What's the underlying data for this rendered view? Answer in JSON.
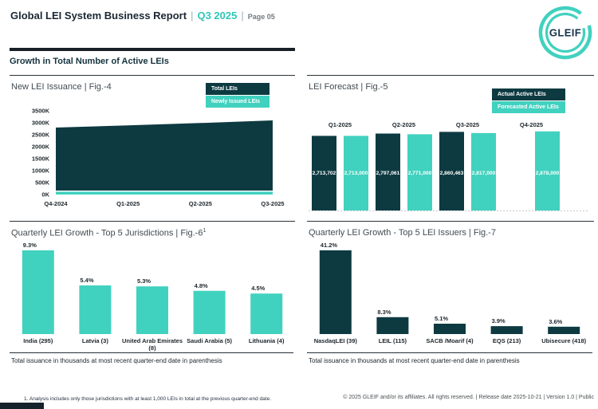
{
  "colors": {
    "teal": "#41d1bf",
    "dark": "#0d3a41",
    "heading": "#14333e",
    "title_gray": "#414b52"
  },
  "header": {
    "title": "Global LEI System Business Report",
    "sep": "|",
    "period": "Q3 2025",
    "page": "Page 05",
    "logo_text": "GLEIF"
  },
  "section_heading": "Growth in Total Number of Active LEIs",
  "chart_data": [
    {
      "id": "fig4",
      "type": "area",
      "title": "New LEI Issuance | Fig.-4",
      "categories": [
        "Q4-2024",
        "Q1-2025",
        "Q2-2025",
        "Q3-2025"
      ],
      "series": [
        {
          "name": "Total LEIs",
          "color_key": "dark",
          "values": [
            2800000,
            2890000,
            2990000,
            3100000
          ]
        },
        {
          "name": "Newly Issued LEIs",
          "color_key": "teal",
          "values": [
            80000,
            80000,
            80000,
            80000
          ]
        }
      ],
      "values_estimated_from_pixels": true,
      "ylim": [
        0,
        3500000
      ],
      "yticks": [
        "3500K",
        "3000K",
        "2500K",
        "2000K",
        "1500K",
        "1000K",
        "500K",
        "0K"
      ],
      "legend_position": "top-right",
      "grid": false
    },
    {
      "id": "fig5",
      "type": "bar",
      "title": "LEI Forecast | Fig.-5",
      "categories": [
        "Q1-2025",
        "Q2-2025",
        "Q3-2025",
        "Q4-2025"
      ],
      "series": [
        {
          "name": "Actual Active LEIs",
          "color_key": "dark",
          "values": [
            2713702,
            2797061,
            2860463,
            null
          ],
          "labels": [
            "2,713,702",
            "2,797,061",
            "2,860,463",
            null
          ]
        },
        {
          "name": "Forecasted Active LEIs",
          "color_key": "teal",
          "values": [
            2713000,
            2771000,
            2817000,
            2878000
          ],
          "labels": [
            "2,713,000",
            "2,771,000",
            "2,817,000",
            "2,878,000"
          ]
        }
      ],
      "category_label_position": "top",
      "value_label_style": "white-inside",
      "legend_position": "top-right",
      "baseline": "dotted"
    },
    {
      "id": "fig6",
      "type": "bar",
      "title": "Quarterly LEI Growth - Top 5 Jurisdictions | Fig.-6",
      "title_sup": "1",
      "color_key": "teal",
      "categories": [
        "India (295)",
        "Latvia (3)",
        "United Arab Emirates (8)",
        "Saudi Arabia (5)",
        "Lithuania (4)"
      ],
      "values": [
        9.3,
        5.4,
        5.3,
        4.8,
        4.5
      ],
      "value_labels": [
        "9.3%",
        "5.4%",
        "5.3%",
        "4.8%",
        "4.5%"
      ],
      "note": "Total issuance in thousands at most recent quarter-end date in parenthesis"
    },
    {
      "id": "fig7",
      "type": "bar",
      "title": "Quarterly LEI Growth - Top 5 LEI Issuers | Fig.-7",
      "color_key": "dark",
      "categories": [
        "NasdaqLEI (39)",
        "LEIL (115)",
        "SACB /Moarif (4)",
        "EQS (213)",
        "Ubisecure (418)"
      ],
      "values": [
        41.2,
        8.3,
        5.1,
        3.9,
        3.6
      ],
      "value_labels": [
        "41.2%",
        "8.3%",
        "5.1%",
        "3.9%",
        "3.6%"
      ],
      "note": "Total issuance in thousands at most recent quarter-end date in parenthesis"
    }
  ],
  "footer": {
    "footnote": "1. Analysis includes only those jurisdictions with at least 1,000 LEIs in total at the previous quarter-end date.",
    "copyright": "© 2025 GLEIF and/or its affiliates. All rights reserved. | Release date 2025-10-21 | Version 1.0 | Public"
  }
}
